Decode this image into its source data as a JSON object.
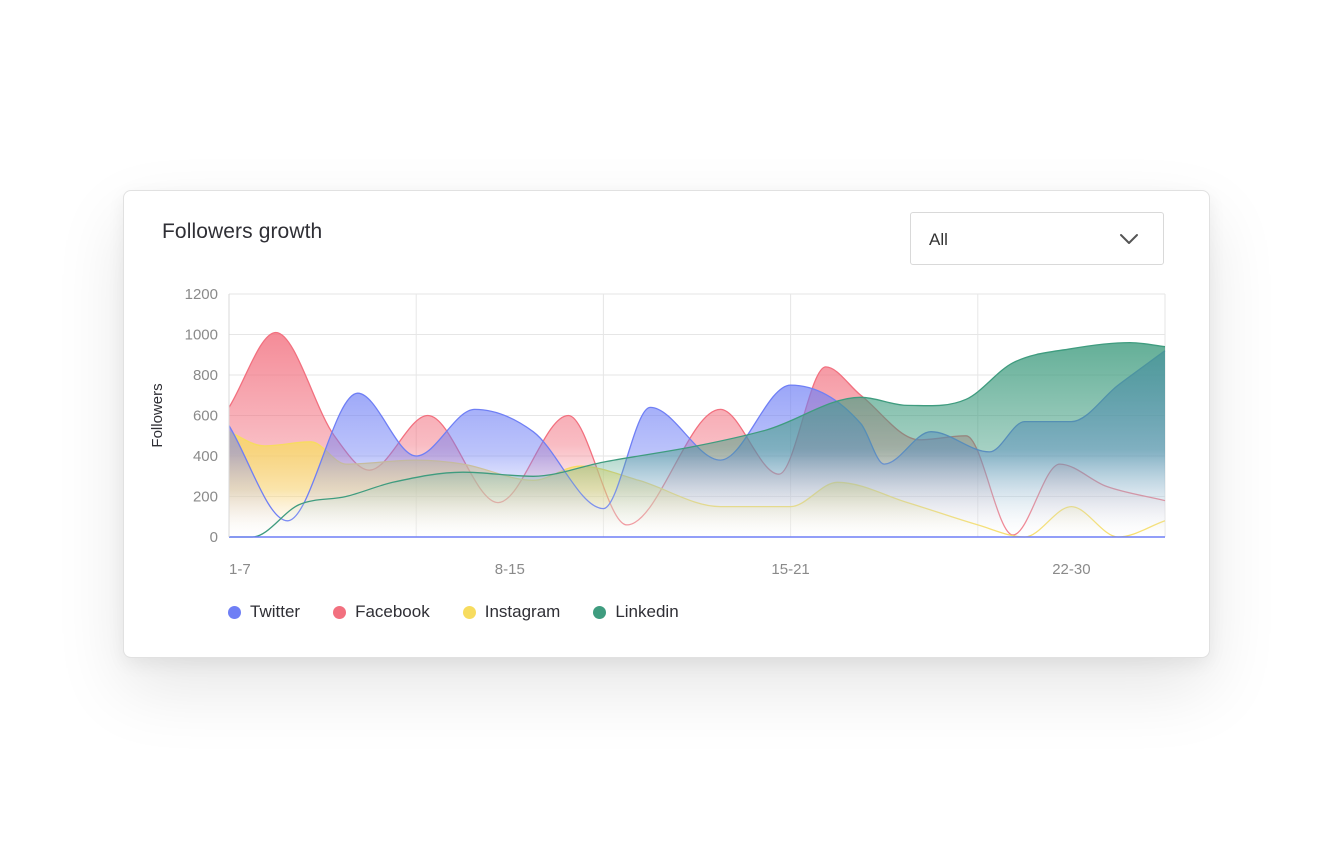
{
  "card": {
    "title": "Followers growth"
  },
  "filter": {
    "selected": "All",
    "icon": "chevron-down-icon"
  },
  "chart_data": {
    "type": "area",
    "title": "Followers growth",
    "xlabel": "",
    "ylabel": "Followers",
    "ylim": [
      0,
      1200
    ],
    "xlim": [
      0,
      40
    ],
    "yticks": [
      0,
      200,
      400,
      600,
      800,
      1000,
      1200
    ],
    "xtick_labels": [
      {
        "label": "1-7",
        "x": 0
      },
      {
        "label": "8-15",
        "x": 12
      },
      {
        "label": "15-21",
        "x": 24
      },
      {
        "label": "22-30",
        "x": 36
      }
    ],
    "grid": true,
    "legend_position": "bottom-left",
    "series": [
      {
        "name": "Twitter",
        "color": "#6f7ff5",
        "x": [
          0,
          2.5,
          5.5,
          8,
          10.5,
          13,
          16,
          18,
          21,
          24,
          27,
          28,
          30,
          32.5,
          34,
          36,
          38,
          40
        ],
        "values": [
          550,
          80,
          710,
          400,
          630,
          520,
          140,
          640,
          380,
          750,
          560,
          360,
          520,
          420,
          570,
          570,
          750,
          920
        ]
      },
      {
        "name": "Facebook",
        "color": "#f2707f",
        "x": [
          0,
          2,
          4.5,
          6,
          8.5,
          11.5,
          14.5,
          17,
          21,
          23.5,
          25.5,
          27,
          29.5,
          31.5,
          33.5,
          35.5,
          37.5,
          40
        ],
        "values": [
          640,
          1010,
          500,
          330,
          600,
          170,
          600,
          60,
          630,
          310,
          840,
          700,
          480,
          500,
          10,
          360,
          250,
          180
        ]
      },
      {
        "name": "Instagram",
        "color": "#f7dc5f",
        "x": [
          0,
          1.5,
          3.5,
          5,
          8,
          10,
          13,
          15,
          17.5,
          21,
          24,
          26,
          29,
          32,
          34,
          36,
          38,
          40
        ],
        "values": [
          520,
          450,
          470,
          360,
          380,
          360,
          280,
          350,
          280,
          150,
          150,
          270,
          170,
          60,
          0,
          150,
          0,
          80
        ]
      },
      {
        "name": "Linkedin",
        "color": "#3f9c7f",
        "x": [
          0,
          1,
          3,
          5,
          7,
          10,
          13,
          16,
          20,
          23,
          27,
          29,
          31.5,
          33.5,
          36,
          38.5,
          40
        ],
        "values": [
          0,
          0,
          160,
          200,
          270,
          320,
          300,
          370,
          450,
          530,
          690,
          650,
          680,
          860,
          930,
          960,
          940
        ]
      }
    ]
  }
}
